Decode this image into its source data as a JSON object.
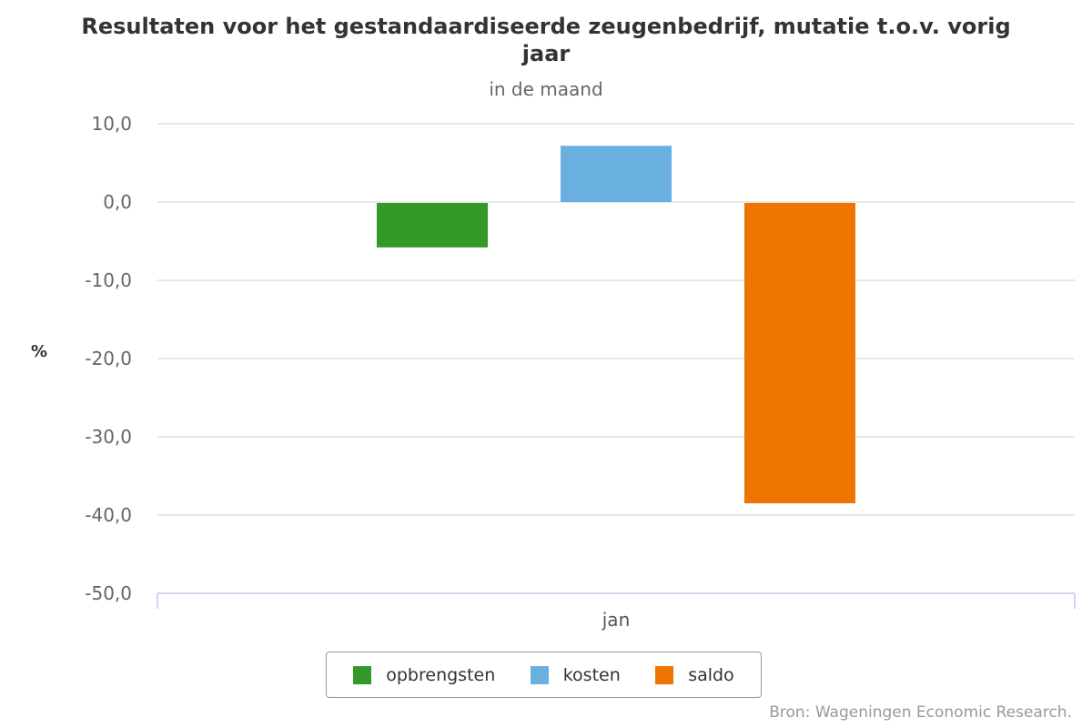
{
  "chart_data": {
    "type": "bar",
    "title_line1": "Resultaten voor het gestandaardiseerde zeugenbedrijf, mutatie t.o.v. vorig",
    "title_line2": "jaar",
    "subtitle": "in de maand",
    "ylabel": "%",
    "categories": [
      "jan"
    ],
    "ylim": [
      -50,
      10
    ],
    "yticks": [
      "10,0",
      "0,0",
      "-10,0",
      "-20,0",
      "-30,0",
      "-40,0",
      "-50,0"
    ],
    "ytick_values": [
      10,
      0,
      -10,
      -20,
      -30,
      -40,
      -50
    ],
    "series": [
      {
        "name": "opbrengsten",
        "color": "#339a2a",
        "values": [
          -5.8
        ]
      },
      {
        "name": "kosten",
        "color": "#69afe0",
        "values": [
          7.3
        ]
      },
      {
        "name": "saldo",
        "color": "#ed7500",
        "values": [
          -38.5
        ]
      }
    ],
    "grid": true,
    "legend_position": "bottom-center",
    "credit": "Bron: Wageningen Economic Research."
  }
}
